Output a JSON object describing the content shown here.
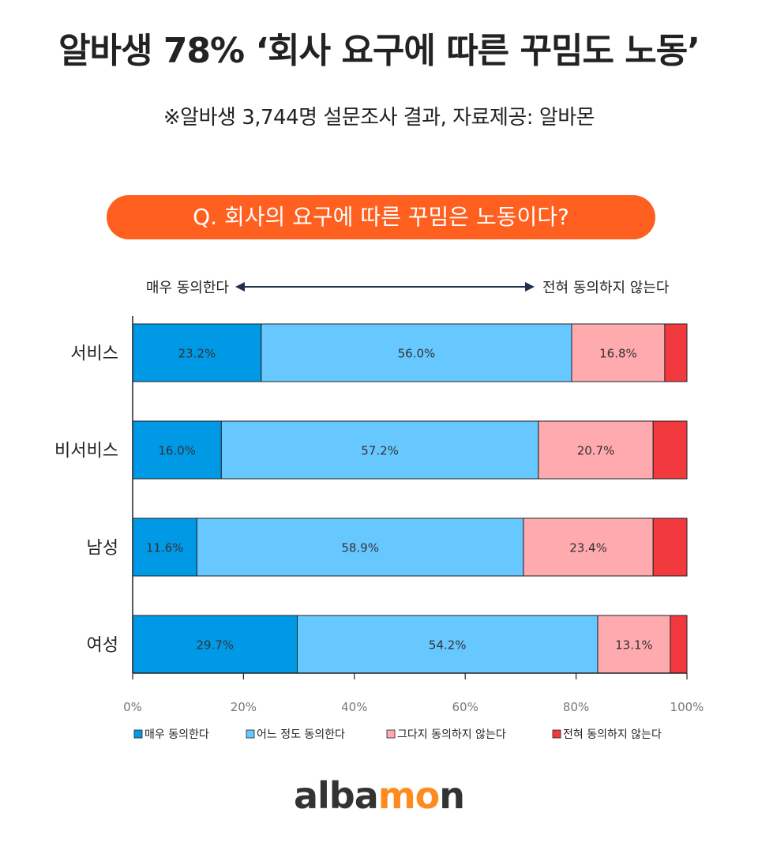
{
  "header": {
    "title": "알바생 78% ‘회사 요구에 따른 꾸밈도 노동’",
    "subtitle": "※알바생 3,744명 설문조사 결과, 자료제공: 알바몬",
    "question": "Q. 회사의 요구에 따른 꾸밈은 노동이다?"
  },
  "scale": {
    "left_label": "매우 동의한다",
    "right_label": "전혀 동의하지 않는다"
  },
  "chart_data": {
    "type": "bar",
    "orientation": "horizontal",
    "stacked": true,
    "categories": [
      "서비스",
      "비서비스",
      "남성",
      "여성"
    ],
    "series": [
      {
        "name": "매우 동의한다",
        "color": "#0099e6",
        "values": [
          23.2,
          16.0,
          11.6,
          29.7
        ],
        "labels": [
          "23.2%",
          "16.0%",
          "11.6%",
          "29.7%"
        ]
      },
      {
        "name": "어느 정도 동의한다",
        "color": "#66c8ff",
        "values": [
          56.0,
          57.2,
          58.9,
          54.2
        ],
        "labels": [
          "56.0%",
          "57.2%",
          "58.9%",
          "54.2%"
        ]
      },
      {
        "name": "그다지 동의하지 않는다",
        "color": "#ffaaaf",
        "values": [
          16.8,
          20.7,
          23.4,
          13.1
        ],
        "labels": [
          "16.8%",
          "20.7%",
          "23.4%",
          "13.1%"
        ]
      },
      {
        "name": "전혀 동의하지 않는다",
        "color": "#f23a3e",
        "values": [
          4.0,
          6.1,
          6.1,
          3.0
        ],
        "labels": [
          "",
          "",
          "",
          ""
        ]
      }
    ],
    "xlim": [
      0,
      100
    ],
    "xticks": [
      "0%",
      "20%",
      "40%",
      "60%",
      "80%",
      "100%"
    ],
    "legend_position": "bottom"
  },
  "footer": {
    "logo_text_before": "alba",
    "logo_text_accent": "mo",
    "logo_text_after": "n"
  }
}
